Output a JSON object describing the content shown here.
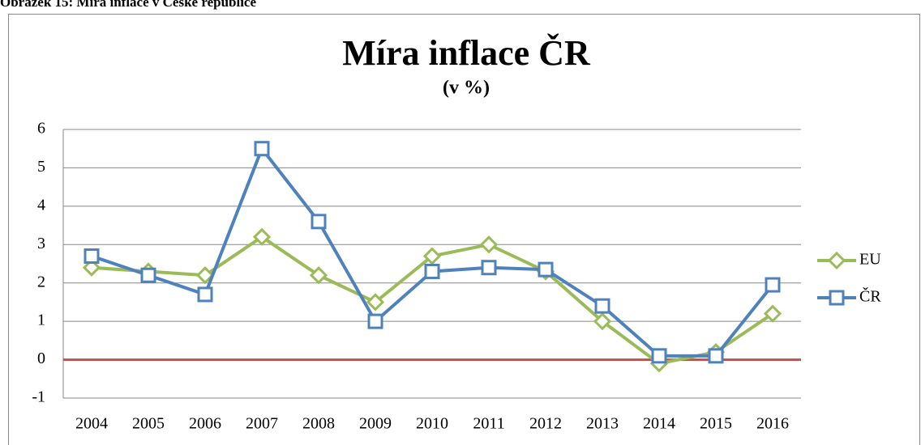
{
  "caption": "Obrázek 15: Míra inflace v České republice",
  "chart_data": {
    "type": "line",
    "title": "Míra inflace ČR",
    "subtitle": "(v %)",
    "categories": [
      "2004",
      "2005",
      "2006",
      "2007",
      "2008",
      "2009",
      "2010",
      "2011",
      "2012",
      "2013",
      "2014",
      "2015",
      "2016"
    ],
    "series": [
      {
        "name": "EU",
        "color": "#9bbb59",
        "marker": "diamond",
        "values": [
          2.4,
          2.3,
          2.2,
          3.2,
          2.2,
          1.5,
          2.7,
          3.0,
          2.3,
          1.0,
          -0.1,
          0.2,
          1.2
        ]
      },
      {
        "name": "ČR",
        "color": "#4f81bd",
        "marker": "square",
        "values": [
          2.7,
          2.2,
          1.7,
          5.5,
          3.6,
          1.0,
          2.3,
          2.4,
          2.35,
          1.4,
          0.1,
          0.1,
          1.95
        ]
      }
    ],
    "ylim": [
      -1,
      6
    ],
    "yticks": [
      -1,
      0,
      1,
      2,
      3,
      4,
      5,
      6
    ],
    "grid": true,
    "zero_line_color": "#c0504d",
    "legend": "right"
  }
}
